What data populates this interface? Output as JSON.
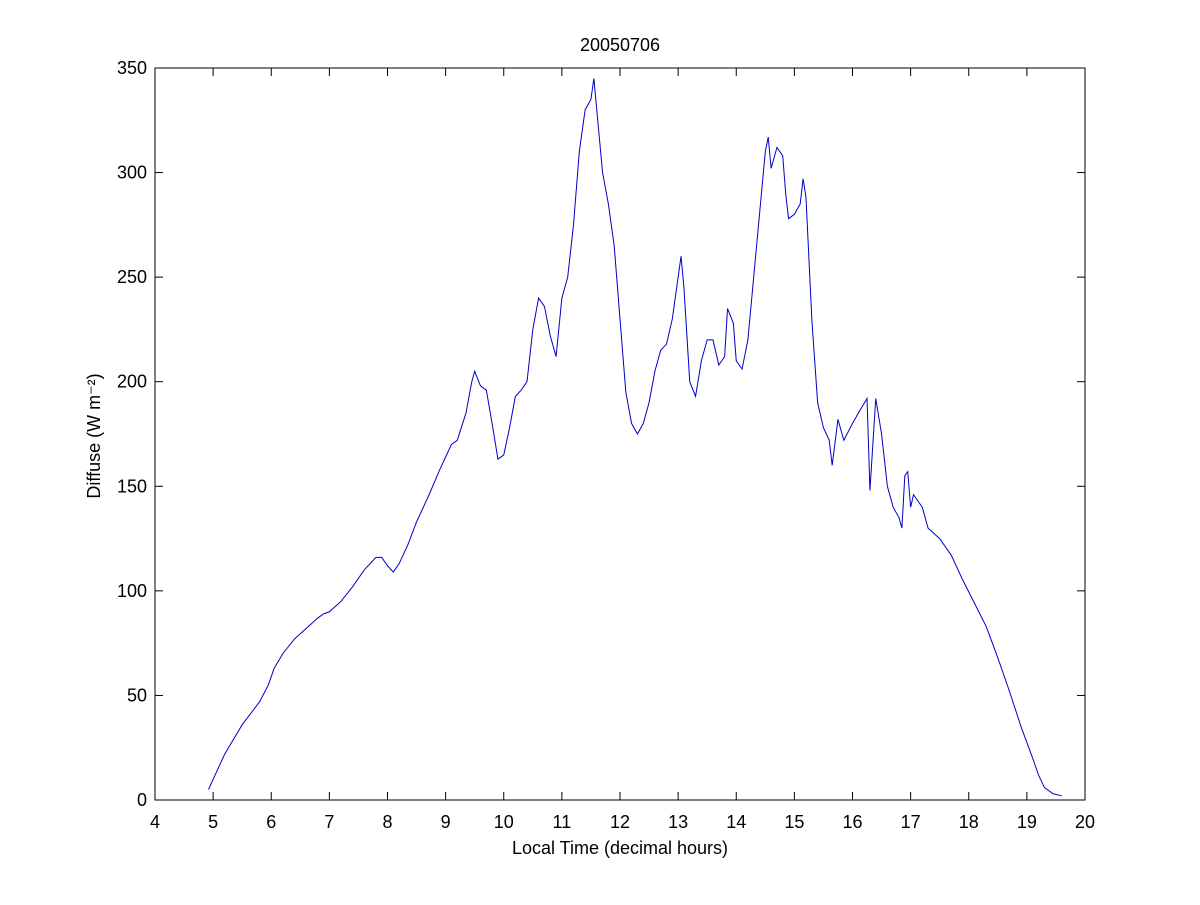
{
  "chart_data": {
    "type": "line",
    "title": "20050706",
    "x_label": "Local Time (decimal hours)",
    "y_label": "Diffuse (W m⁻²)",
    "x": [
      4.92,
      5.2,
      5.5,
      5.8,
      5.95,
      6.05,
      6.2,
      6.4,
      6.6,
      6.8,
      6.9,
      7.0,
      7.2,
      7.4,
      7.6,
      7.8,
      7.9,
      8.0,
      8.1,
      8.2,
      8.35,
      8.5,
      8.7,
      8.9,
      9.0,
      9.1,
      9.2,
      9.35,
      9.45,
      9.5,
      9.6,
      9.7,
      9.8,
      9.9,
      10.0,
      10.1,
      10.2,
      10.3,
      10.4,
      10.5,
      10.6,
      10.7,
      10.8,
      10.9,
      11.0,
      11.1,
      11.2,
      11.3,
      11.4,
      11.5,
      11.55,
      11.6,
      11.7,
      11.8,
      11.9,
      12.0,
      12.1,
      12.2,
      12.3,
      12.4,
      12.5,
      12.6,
      12.7,
      12.8,
      12.9,
      13.0,
      13.05,
      13.1,
      13.2,
      13.3,
      13.4,
      13.5,
      13.6,
      13.7,
      13.8,
      13.85,
      13.95,
      14.0,
      14.1,
      14.2,
      14.3,
      14.4,
      14.5,
      14.55,
      14.6,
      14.7,
      14.8,
      14.85,
      14.9,
      15.0,
      15.1,
      15.15,
      15.2,
      15.3,
      15.4,
      15.5,
      15.6,
      15.65,
      15.75,
      15.85,
      16.0,
      16.1,
      16.25,
      16.3,
      16.4,
      16.5,
      16.6,
      16.7,
      16.8,
      16.85,
      16.9,
      16.95,
      17.0,
      17.05,
      17.2,
      17.3,
      17.5,
      17.7,
      17.9,
      18.1,
      18.3,
      18.5,
      18.7,
      18.9,
      19.1,
      19.2,
      19.3,
      19.45,
      19.6
    ],
    "series": [
      {
        "name": "Diffuse",
        "color": "#0000c8",
        "values": [
          5,
          22,
          36,
          47,
          55,
          63,
          70,
          77,
          82,
          87,
          89,
          90,
          95,
          102,
          110,
          116,
          116,
          112,
          109,
          113,
          122,
          133,
          145,
          158,
          164,
          170,
          172,
          185,
          200,
          205,
          198,
          196,
          180,
          163,
          165,
          178,
          193,
          196,
          200,
          225,
          240,
          236,
          222,
          212,
          240,
          250,
          275,
          310,
          330,
          335,
          345,
          330,
          300,
          285,
          265,
          230,
          195,
          180,
          175,
          180,
          190,
          205,
          215,
          218,
          230,
          250,
          260,
          245,
          200,
          193,
          210,
          220,
          220,
          208,
          212,
          235,
          228,
          210,
          206,
          220,
          250,
          280,
          310,
          317,
          302,
          312,
          308,
          290,
          278,
          280,
          285,
          297,
          288,
          230,
          190,
          178,
          172,
          160,
          182,
          172,
          180,
          185,
          192,
          148,
          192,
          175,
          150,
          140,
          135,
          130,
          155,
          157,
          140,
          146,
          140,
          130,
          125,
          117,
          105,
          94,
          83,
          68,
          52,
          35,
          20,
          12,
          6,
          3,
          2
        ]
      }
    ],
    "xlim": [
      4,
      20
    ],
    "xticks": [
      4,
      5,
      6,
      7,
      8,
      9,
      10,
      11,
      12,
      13,
      14,
      15,
      16,
      17,
      18,
      19,
      20
    ],
    "ylim": [
      0,
      350
    ],
    "yticks": [
      0,
      50,
      100,
      150,
      200,
      250,
      300,
      350
    ]
  }
}
